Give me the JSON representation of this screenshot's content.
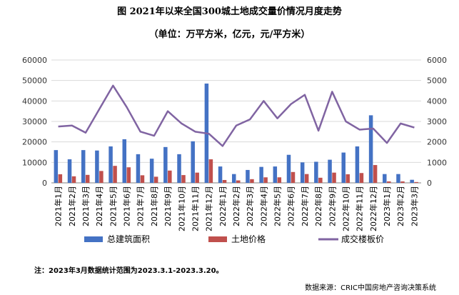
{
  "title": "图 2021年以来全国300城土地成交量价情况月度走势",
  "subtitle": "（单位：万平方米，亿元，元/平方米）",
  "note": "注：2023年3月数据统计范围为2023.3.1-2023.3.20。",
  "source": "数据来源：CRIC中国房地产咨询决策系统",
  "chart_data": {
    "type": "bar+line",
    "categories": [
      "2021年1月",
      "2021年2月",
      "2021年3月",
      "2021年4月",
      "2021年5月",
      "2021年6月",
      "2021年7月",
      "2021年8月",
      "2021年9月",
      "2021年10月",
      "2021年11月",
      "2021年12月",
      "2022年1月",
      "2022年2月",
      "2022年3月",
      "2022年4月",
      "2022年5月",
      "2022年6月",
      "2022年7月",
      "2022年8月",
      "2022年9月",
      "2022年10月",
      "2022年11月",
      "2022年12月",
      "2023年1月",
      "2023年2月",
      "2023年3月"
    ],
    "left_axis": {
      "min": 0,
      "max": 60000,
      "ticks": [
        "0",
        "10000",
        "20000",
        "30000",
        "40000",
        "50000",
        "60000"
      ]
    },
    "right_axis": {
      "min": 0,
      "max": 6000,
      "ticks": [
        "0",
        "1000",
        "2000",
        "3000",
        "4000",
        "5000",
        "6000"
      ]
    },
    "series": [
      {
        "name": "总建筑面积",
        "type": "bar",
        "axis": "left",
        "color": "#4472C4",
        "values": [
          16000,
          11500,
          16000,
          15800,
          17800,
          21300,
          14000,
          11800,
          17500,
          14000,
          20300,
          48500,
          8000,
          4300,
          6300,
          7800,
          8000,
          13700,
          10000,
          10300,
          11300,
          14800,
          17800,
          33000,
          4300,
          4300,
          1500
        ]
      },
      {
        "name": "土地价格",
        "type": "bar",
        "axis": "left",
        "color": "#C0504D",
        "values": [
          4200,
          3200,
          3900,
          5800,
          8300,
          7600,
          3700,
          3000,
          6000,
          3800,
          5000,
          11500,
          1400,
          1200,
          1800,
          2700,
          2700,
          5300,
          4300,
          2500,
          5000,
          4200,
          4800,
          8700,
          700,
          700,
          400
        ]
      },
      {
        "name": "成交楼板价",
        "type": "line",
        "axis": "right",
        "color": "#8064A2",
        "values": [
          2750,
          2800,
          2450,
          3600,
          4750,
          3700,
          2500,
          2300,
          3500,
          2900,
          2500,
          2400,
          1800,
          2800,
          3100,
          4000,
          3150,
          3850,
          4300,
          2550,
          4450,
          3000,
          2600,
          2650,
          1950,
          2900,
          2700
        ]
      }
    ]
  }
}
